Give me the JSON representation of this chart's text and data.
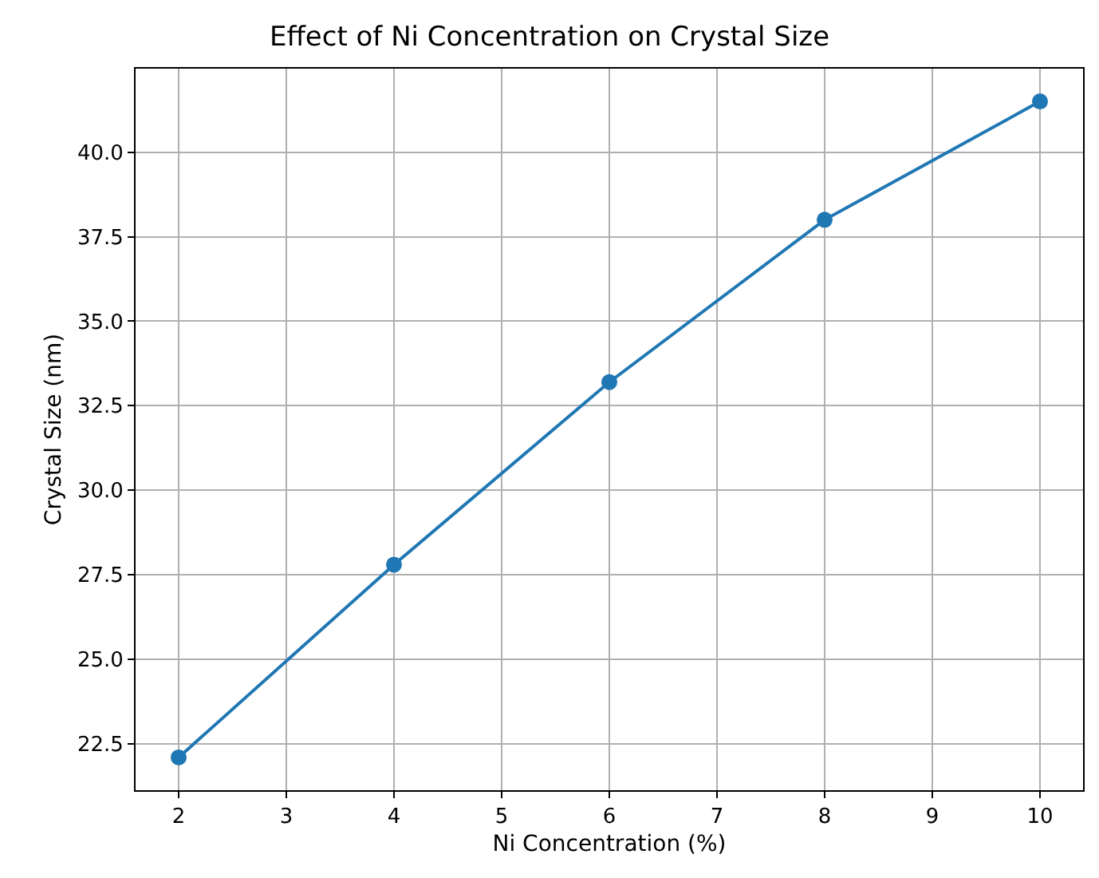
{
  "chart_data": {
    "type": "line",
    "title": "Effect of Ni Concentration on Crystal Size",
    "xlabel": "Ni Concentration (%)",
    "ylabel": "Crystal Size (nm)",
    "x": [
      2,
      4,
      6,
      8,
      10
    ],
    "series": [
      {
        "color": "#1f77b4",
        "values": [
          22.1,
          27.8,
          33.2,
          38.0,
          41.5
        ]
      }
    ],
    "xlim": [
      1.6,
      10.4
    ],
    "xticks": [
      2,
      3,
      4,
      5,
      6,
      7,
      8,
      9,
      10
    ],
    "ylim": [
      21.13,
      42.47
    ],
    "yticks": [
      {
        "value": 22.5,
        "label": "22.5"
      },
      {
        "value": 25,
        "label": "25.0"
      },
      {
        "value": 27.5,
        "label": "27.5"
      },
      {
        "value": 30,
        "label": "30.0"
      },
      {
        "value": 32.5,
        "label": "32.5"
      },
      {
        "value": 35,
        "label": "35.0"
      },
      {
        "value": 37.5,
        "label": "37.5"
      },
      {
        "value": 40,
        "label": "40.0"
      }
    ],
    "grid": true,
    "marker": "circle",
    "line_style": "solid"
  }
}
